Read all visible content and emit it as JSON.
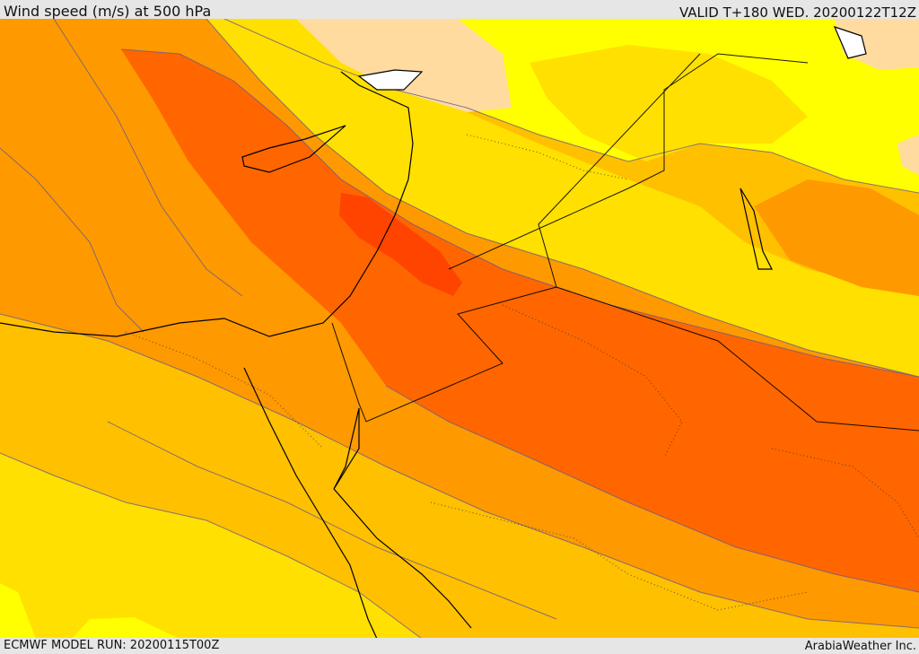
{
  "header": {
    "title": "Wind speed (m/s) at 500 hPa",
    "valid": "VALID T+180 WED. 20200122T12Z"
  },
  "footer": {
    "model_run": "ECMWF MODEL RUN: 20200115T00Z",
    "credit": "ArabiaWeather Inc."
  },
  "map": {
    "variable": "wind speed",
    "level": "500 hPa",
    "colors": {
      "band_1": "#ffff00",
      "band_2": "#ffe000",
      "band_3": "#ffc000",
      "band_4": "#ff9900",
      "band_5": "#ff6600",
      "band_6": "#ff4400",
      "land_light": "#ffdba0",
      "contour": "#6b5a8a",
      "coast": "#000000"
    }
  }
}
